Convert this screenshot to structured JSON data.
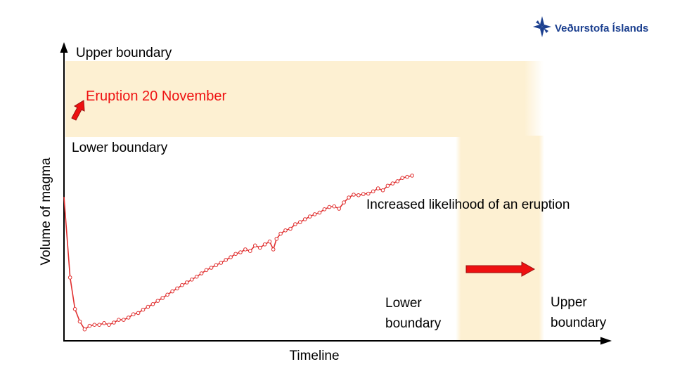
{
  "logo": {
    "text": "Veðurstofa Íslands",
    "icon": "vi-cross-logo-icon",
    "color": "#1b3f8f"
  },
  "chart_data": {
    "type": "line",
    "title": "",
    "xlabel": "Timeline",
    "ylabel": "Volume of magma",
    "ylim": [
      0,
      100
    ],
    "xlim": [
      0,
      100
    ],
    "series": [
      {
        "name": "Magma volume",
        "color": "#e03030",
        "x": [
          0.0,
          1.5,
          2.7,
          3.9,
          5.1,
          6.3,
          7.5,
          8.7,
          9.9,
          11.1,
          12.3,
          13.5,
          14.7,
          15.9,
          17.1,
          18.3,
          19.5,
          20.7,
          21.9,
          23.1,
          24.3,
          25.5,
          26.7,
          27.9,
          29.1,
          30.3,
          31.5,
          32.7,
          33.9,
          35.1,
          36.3,
          37.5,
          38.7,
          39.9,
          41.1,
          42.3,
          43.5,
          44.7,
          45.9,
          47.1,
          48.3,
          49.5,
          50.7,
          51.6,
          52.4,
          53.4,
          54.6,
          55.8,
          57.0,
          58.2,
          59.4,
          60.6,
          61.8,
          63.0,
          64.2,
          65.4,
          66.6,
          67.8,
          69.0,
          70.2,
          71.4,
          72.6,
          73.8,
          75.0,
          76.2,
          77.4,
          78.6,
          79.8,
          81.0,
          82.2,
          83.4,
          84.6,
          85.8
        ],
        "y": [
          70.0,
          31.0,
          15.7,
          9.7,
          5.9,
          7.6,
          8.1,
          8.1,
          8.9,
          8.1,
          9.2,
          10.5,
          10.5,
          11.6,
          13.2,
          13.8,
          15.4,
          16.8,
          18.1,
          19.7,
          21.1,
          22.7,
          24.3,
          25.7,
          27.3,
          28.6,
          30.0,
          31.4,
          33.0,
          34.6,
          35.7,
          37.0,
          38.1,
          39.5,
          40.8,
          42.4,
          43.2,
          44.6,
          43.8,
          46.5,
          45.4,
          47.0,
          48.4,
          44.6,
          49.7,
          52.2,
          53.8,
          54.6,
          56.8,
          57.8,
          59.2,
          60.5,
          61.6,
          62.4,
          64.0,
          65.1,
          65.4,
          64.3,
          67.3,
          69.7,
          71.1,
          70.8,
          71.4,
          71.6,
          72.7,
          74.1,
          73.2,
          75.4,
          76.5,
          77.6,
          79.2,
          79.7,
          80.3
        ]
      }
    ],
    "annotations": {
      "upper_boundary_top": "Upper boundary",
      "lower_boundary_top": "Lower boundary",
      "eruption": "Eruption 20 November",
      "likelihood": "Increased likelihood of an eruption",
      "lower_boundary_right": "Lower boundary",
      "upper_boundary_right": "Upper boundary"
    },
    "colors": {
      "band": "#fdf0d2",
      "eruption_text": "#ee1111",
      "arrow_fill": "#ee1111",
      "arrow_stroke": "#9a1010"
    }
  }
}
